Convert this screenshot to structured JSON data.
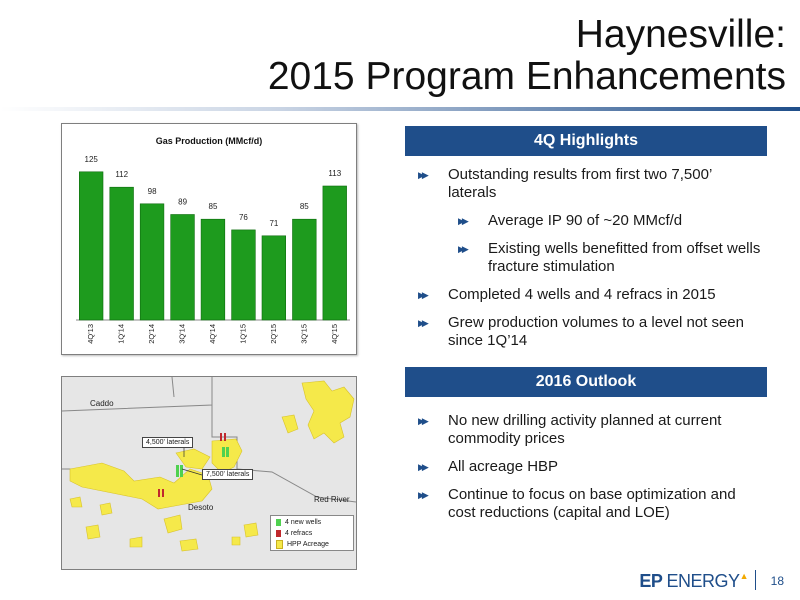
{
  "title": {
    "line1": "Haynesville:",
    "line2": "2015 Program Enhancements"
  },
  "chart_data": {
    "type": "bar",
    "title": "Gas Production (MMcf/d)",
    "categories": [
      "4Q'13",
      "1Q'14",
      "2Q'14",
      "3Q'14",
      "4Q'14",
      "1Q'15",
      "2Q'15",
      "3Q'15",
      "4Q'15"
    ],
    "values": [
      125,
      112,
      98,
      89,
      85,
      76,
      71,
      85,
      113
    ],
    "ylim": [
      0,
      140
    ],
    "bar_color": "#1e9b1e",
    "grid": false,
    "legend": false
  },
  "map": {
    "labels": {
      "caddo": "Caddo",
      "desoto": "Desoto",
      "red_river": "Red River"
    },
    "callouts": {
      "laterals_4500": "4,500' laterals",
      "laterals_7500": "7,500' laterals"
    },
    "legend": [
      "4 new wells",
      "4 refracs",
      "HPP Acreage"
    ],
    "colors": {
      "acreage": "#f5e94a",
      "new_wells": "#4fd14f",
      "refracs": "#c0282d",
      "background": "#e6e6e6"
    }
  },
  "highlights": {
    "header": "4Q Highlights",
    "items": [
      {
        "text": "Outstanding results from first two 7,500’ laterals",
        "level": 1
      },
      {
        "text": "Average IP 90 of ~20 MMcf/d",
        "level": 2
      },
      {
        "text": "Existing wells benefitted from offset wells fracture stimulation",
        "level": 2
      },
      {
        "text": "Completed 4 wells and 4 refracs in 2015",
        "level": 1
      },
      {
        "text": "Grew production volumes to a level not seen since 1Q’14",
        "level": 1
      }
    ]
  },
  "outlook": {
    "header": "2016 Outlook",
    "items": [
      {
        "text": "No new drilling activity planned at current commodity prices",
        "level": 1
      },
      {
        "text": "All acreage HBP",
        "level": 1
      },
      {
        "text": "Continue to focus on base optimization and cost reductions (capital and LOE)",
        "level": 1
      }
    ]
  },
  "footer": {
    "logo_ep": "EP",
    "logo_energy": "ENERGY",
    "page_number": "18"
  },
  "colors": {
    "accent": "#1f4e8a",
    "bullet_arrow": "#1f4e8a"
  }
}
